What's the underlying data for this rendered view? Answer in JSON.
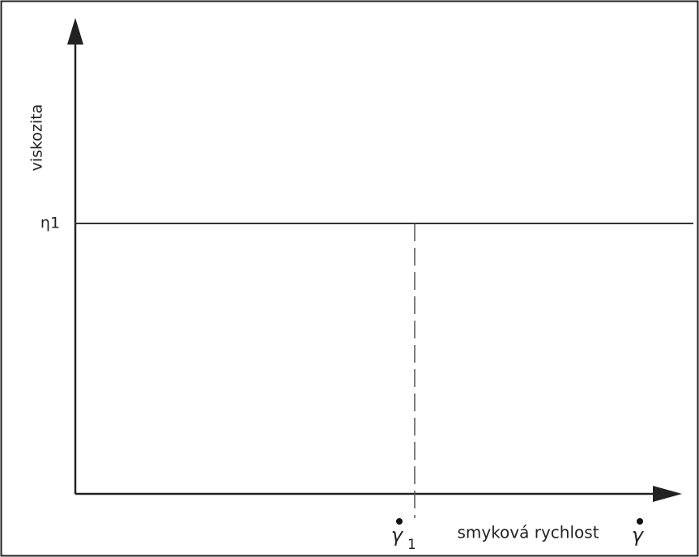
{
  "y_axis": {
    "label": "viskozita"
  },
  "x_axis": {
    "label": "smyková rychlost",
    "symbol": "γ"
  },
  "level_line": {
    "label": "η1"
  },
  "marker": {
    "symbol": "γ",
    "subscript": "1"
  }
}
